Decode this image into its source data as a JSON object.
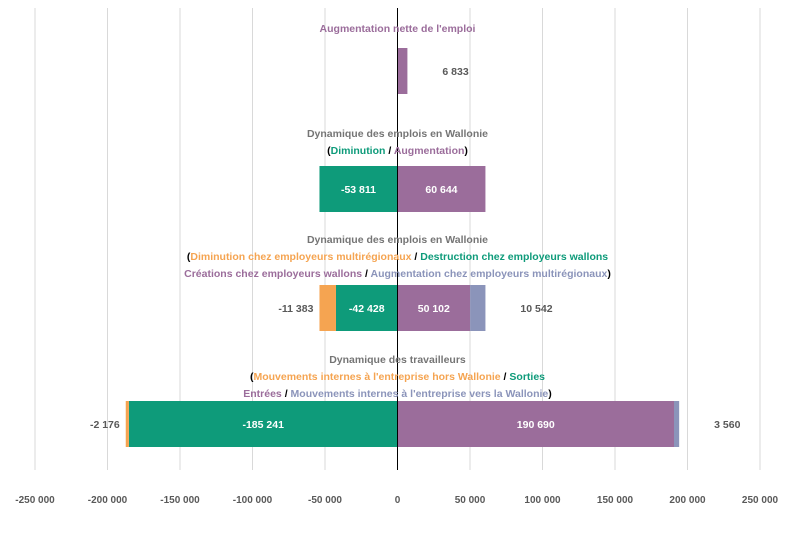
{
  "colors": {
    "purple": "#9b6d9b",
    "green": "#0e9b7a",
    "orange": "#f5a451",
    "steel": "#8b94ba",
    "title_gray": "#757575",
    "text_gray": "#595959",
    "black": "#000000"
  },
  "chart_data": {
    "type": "bar",
    "orientation": "horizontal-stacked-diverging",
    "xlim": [
      -250000,
      250000
    ],
    "x_ticks": [
      -250000,
      -200000,
      -150000,
      -100000,
      -50000,
      0,
      50000,
      100000,
      150000,
      200000,
      250000
    ],
    "x_tick_labels": [
      "-250 000",
      "-200 000",
      "-150 000",
      "-100 000",
      "-50 000",
      "0",
      "50 000",
      "100 000",
      "150 000",
      "200 000",
      "250 000"
    ],
    "grid": true,
    "groups": [
      {
        "title_lines": [
          [
            {
              "text": "Augmentation nette de l'emploi",
              "color": "purple"
            }
          ]
        ],
        "segments": [
          {
            "value": 6833,
            "color": "purple",
            "label": "6 833",
            "label_pos": "outside"
          }
        ]
      },
      {
        "title_lines": [
          [
            {
              "text": "Dynamique des emplois en Wallonie",
              "color": "title_gray"
            }
          ],
          [
            {
              "text": "(",
              "color": "black"
            },
            {
              "text": "Diminution",
              "color": "green"
            },
            {
              "text": " / ",
              "color": "black"
            },
            {
              "text": "Augmentation",
              "color": "purple"
            },
            {
              "text": ")",
              "color": "black"
            }
          ]
        ],
        "segments": [
          {
            "value": -53811,
            "color": "green",
            "label": "-53 811",
            "label_pos": "inside"
          },
          {
            "value": 60644,
            "color": "purple",
            "label": "60 644",
            "label_pos": "inside"
          }
        ]
      },
      {
        "title_lines": [
          [
            {
              "text": "Dynamique des emplois en Wallonie",
              "color": "title_gray"
            }
          ],
          [
            {
              "text": "(",
              "color": "black"
            },
            {
              "text": "Diminution chez employeurs multirégionaux",
              "color": "orange"
            },
            {
              "text": " / ",
              "color": "black"
            },
            {
              "text": "Destruction chez employeurs wallons",
              "color": "green"
            }
          ],
          [
            {
              "text": "Créations chez employeurs wallons",
              "color": "purple"
            },
            {
              "text": " / ",
              "color": "black"
            },
            {
              "text": "Augmentation chez employeurs multirégionaux",
              "color": "steel"
            },
            {
              "text": ")",
              "color": "black"
            }
          ]
        ],
        "segments": [
          {
            "value": -42428,
            "color": "green",
            "label": "-42 428",
            "label_pos": "inside"
          },
          {
            "value": -11383,
            "color": "orange",
            "label": "-11 383",
            "label_pos": "outside"
          },
          {
            "value": 50102,
            "color": "purple",
            "label": "50 102",
            "label_pos": "inside"
          },
          {
            "value": 10542,
            "color": "steel",
            "label": "10 542",
            "label_pos": "outside"
          }
        ]
      },
      {
        "title_lines": [
          [
            {
              "text": "Dynamique des travailleurs",
              "color": "title_gray"
            }
          ],
          [
            {
              "text": "(",
              "color": "black"
            },
            {
              "text": "Mouvements internes à l'entreprise hors Wallonie",
              "color": "orange"
            },
            {
              "text": " / ",
              "color": "black"
            },
            {
              "text": "Sorties",
              "color": "green"
            }
          ],
          [
            {
              "text": "Entrées",
              "color": "purple"
            },
            {
              "text": " / ",
              "color": "black"
            },
            {
              "text": "Mouvements internes à l'entreprise vers la Wallonie",
              "color": "steel"
            },
            {
              "text": ")",
              "color": "black"
            }
          ]
        ],
        "segments": [
          {
            "value": -185241,
            "color": "green",
            "label": "-185 241",
            "label_pos": "inside"
          },
          {
            "value": -2176,
            "color": "orange",
            "label": "-2 176",
            "label_pos": "outside"
          },
          {
            "value": 190690,
            "color": "purple",
            "label": "190 690",
            "label_pos": "inside"
          },
          {
            "value": 3560,
            "color": "steel",
            "label": "3 560",
            "label_pos": "outside"
          }
        ]
      }
    ]
  }
}
